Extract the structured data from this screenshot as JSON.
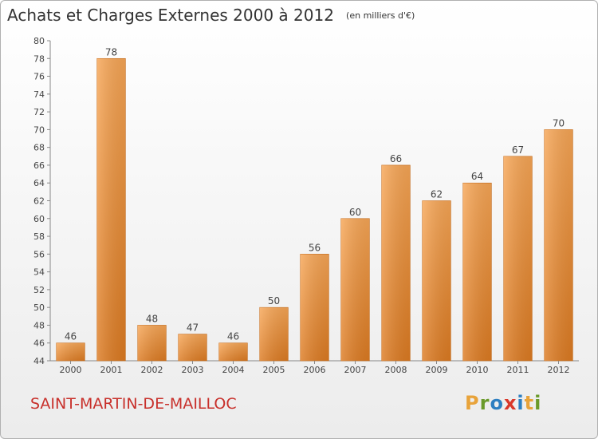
{
  "chart": {
    "title": "Achats et Charges Externes 2000 à 2012",
    "subtitle": "(en milliers d'€)",
    "commune": "SAINT-MARTIN-DE-MAILLOC",
    "logo_text": [
      "P",
      "r",
      "o",
      "x",
      "i",
      "t",
      "i"
    ],
    "logo_colors": [
      "#e8a33a",
      "#6a9a2a",
      "#2d7fc1",
      "#d9382a",
      "#2d7fc1",
      "#e8a33a",
      "#6a9a2a"
    ]
  },
  "chart_data": {
    "type": "bar",
    "categories": [
      "2000",
      "2001",
      "2002",
      "2003",
      "2004",
      "2005",
      "2006",
      "2007",
      "2008",
      "2009",
      "2010",
      "2011",
      "2012"
    ],
    "values": [
      46,
      78,
      48,
      47,
      46,
      50,
      56,
      60,
      66,
      62,
      64,
      67,
      70
    ],
    "title": "Achats et Charges Externes 2000 à 2012",
    "subtitle": "(en milliers d'€)",
    "xlabel": "",
    "ylabel": "",
    "ylim": [
      44,
      80
    ],
    "yticks": [
      44,
      46,
      48,
      50,
      52,
      54,
      56,
      58,
      60,
      62,
      64,
      66,
      68,
      70,
      72,
      74,
      76,
      78,
      80
    ],
    "grid": false,
    "bar_color": "#f0943c",
    "data_labels": true
  }
}
